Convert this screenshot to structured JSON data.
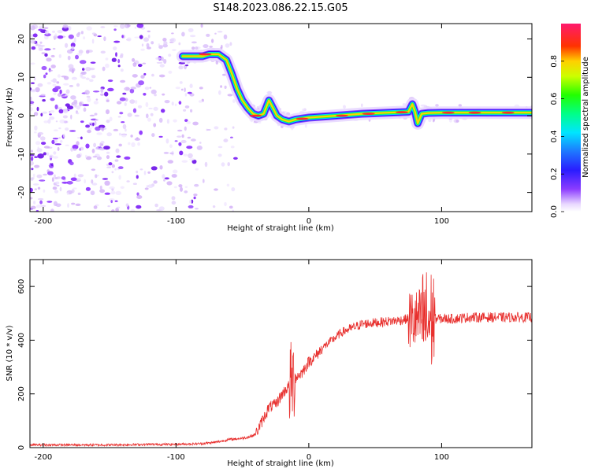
{
  "figure_title": "S148.2023.086.22.15.G05",
  "chart_data": [
    {
      "type": "heatmap",
      "panel": "spectrogram",
      "xlabel": "Height of straight line (km)",
      "ylabel": "Frequency (Hz)",
      "xlim": [
        -210,
        168
      ],
      "ylim": [
        -25,
        24
      ],
      "xticks": [
        -200,
        -100,
        0,
        100
      ],
      "yticks": [
        -20,
        -10,
        0,
        10,
        20
      ],
      "grid": false,
      "colorbar": {
        "label": "Normalized spectral amplitude",
        "range": [
          0,
          1
        ],
        "ticks": [
          0.0,
          0.2,
          0.4,
          0.6,
          0.8
        ],
        "colormap": "white-purple-blue-cyan-green-yellow-red-pink"
      },
      "ridge": {
        "x": [
          -95,
          -85,
          -80,
          -75,
          -68,
          -62,
          -58,
          -54,
          -50,
          -46,
          -42,
          -38,
          -34,
          -30,
          -27,
          -24,
          -20,
          -15,
          -10,
          0,
          20,
          40,
          60,
          75,
          78,
          80,
          82,
          85,
          90,
          100,
          110,
          120,
          140,
          168
        ],
        "y": [
          15.5,
          15.5,
          15.5,
          16,
          16,
          14.5,
          11,
          7,
          4,
          2,
          0.5,
          0,
          0.5,
          4,
          2,
          0,
          -1,
          -1.5,
          -1,
          -0.5,
          0,
          0.5,
          0.8,
          1,
          3,
          1,
          -2,
          0.5,
          0.7,
          0.8,
          0.8,
          0.8,
          0.8,
          0.8
        ]
      },
      "noise_region_x": [
        -210,
        -70
      ]
    },
    {
      "type": "line",
      "panel": "snr",
      "xlabel": "Height of straight line (km)",
      "ylabel": "SNR (10 * v/v)",
      "xlim": [
        -210,
        168
      ],
      "ylim": [
        0,
        700
      ],
      "xticks": [
        -200,
        -100,
        0,
        100
      ],
      "yticks": [
        0,
        200,
        400,
        600
      ],
      "grid": false,
      "series": [
        {
          "color": "#e8302e",
          "x": [
            -210,
            -180,
            -150,
            -120,
            -100,
            -80,
            -70,
            -60,
            -50,
            -45,
            -40,
            -35,
            -30,
            -25,
            -20,
            -15,
            -10,
            -5,
            0,
            5,
            10,
            15,
            20,
            25,
            30,
            40,
            50,
            60,
            70,
            75,
            80,
            85,
            90,
            95,
            100,
            110,
            120,
            130,
            140,
            150,
            160,
            168
          ],
          "y": [
            10,
            10,
            10,
            12,
            12,
            15,
            20,
            30,
            35,
            40,
            50,
            100,
            150,
            160,
            200,
            230,
            260,
            280,
            320,
            340,
            370,
            390,
            410,
            430,
            440,
            460,
            465,
            470,
            475,
            480,
            470,
            480,
            470,
            480,
            480,
            480,
            485,
            485,
            485,
            485,
            485,
            485
          ]
        }
      ]
    }
  ]
}
